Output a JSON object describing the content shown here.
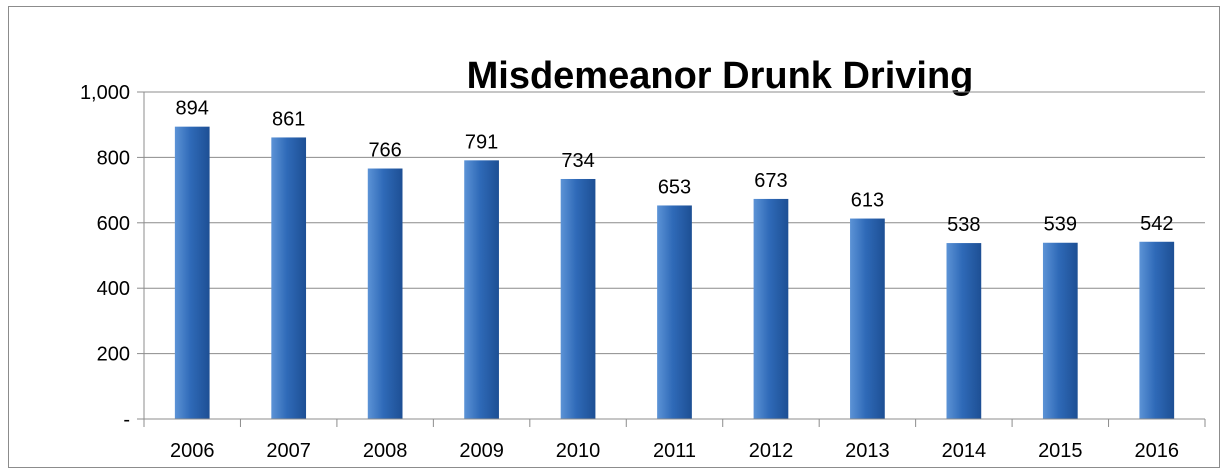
{
  "chart_data": {
    "type": "bar",
    "title": "Misdemeanor Drunk Driving",
    "xlabel": "",
    "ylabel": "",
    "categories": [
      "2006",
      "2007",
      "2008",
      "2009",
      "2010",
      "2011",
      "2012",
      "2013",
      "2014",
      "2015",
      "2016"
    ],
    "values": [
      894,
      861,
      766,
      791,
      734,
      653,
      673,
      613,
      538,
      539,
      542
    ],
    "data_labels": [
      "894",
      "861",
      "766",
      "791",
      "734",
      "653",
      "673",
      "613",
      "538",
      "539",
      "542"
    ],
    "ylim": [
      0,
      1000
    ],
    "yticks": [
      0,
      200,
      400,
      600,
      800,
      1000
    ],
    "ytick_labels": [
      "-",
      "200",
      "400",
      "600",
      "800",
      "1,000"
    ],
    "grid": true,
    "legend": "none",
    "colors": {
      "bar_top": "#5c93d6",
      "bar_mid": "#2f6ab8",
      "bar_bottom": "#1d4f94",
      "grid": "#8c8c8c",
      "axis": "#8c8c8c"
    }
  }
}
